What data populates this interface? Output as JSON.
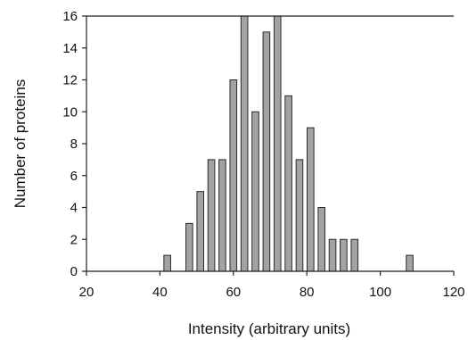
{
  "chart_data": {
    "type": "bar",
    "title": "",
    "xlabel": "Intensity (arbitrary units)",
    "ylabel": "Number of proteins",
    "xlim": [
      20,
      120
    ],
    "ylim": [
      0,
      16
    ],
    "xticks": [
      20,
      40,
      60,
      80,
      100,
      120
    ],
    "yticks": [
      0,
      2,
      4,
      6,
      8,
      10,
      12,
      14,
      16
    ],
    "grid": false,
    "bar_color": "#a3a3a3",
    "bins": [
      42,
      48,
      51,
      54,
      57,
      60,
      63,
      66,
      69,
      72,
      75,
      78,
      81,
      84,
      87,
      90,
      93,
      108
    ],
    "values": [
      1,
      3,
      5,
      7,
      7,
      12,
      16,
      10,
      15,
      16,
      11,
      7,
      9,
      4,
      2,
      2,
      2,
      1
    ]
  }
}
